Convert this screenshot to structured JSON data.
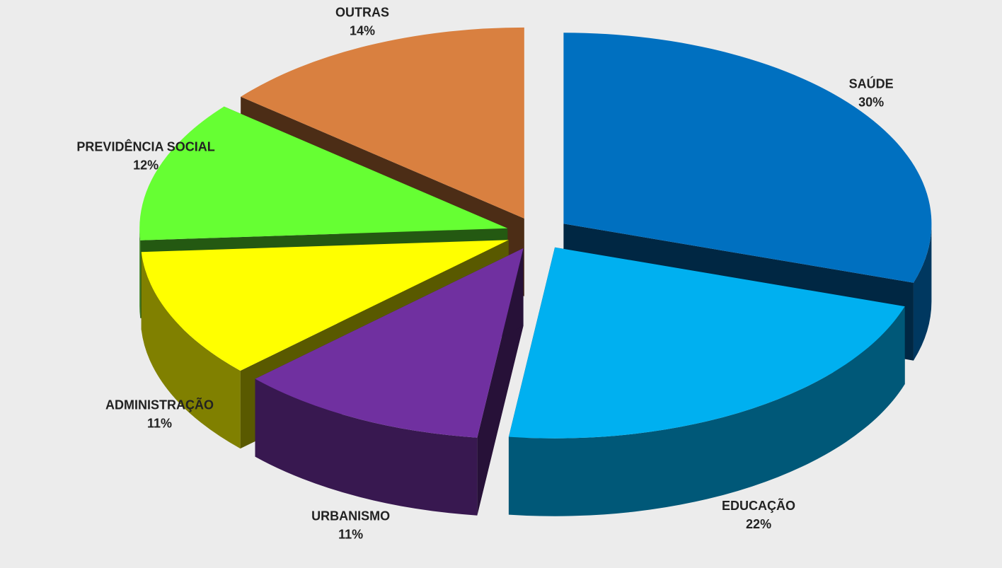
{
  "chart_data": {
    "type": "pie3d",
    "categories": [
      "SAÚDE",
      "EDUCAÇÃO",
      "URBANISMO",
      "ADMINISTRAÇÃO",
      "PREVIDÊNCIA SOCIAL",
      "OUTRAS"
    ],
    "values": [
      30,
      22,
      11,
      11,
      12,
      14
    ],
    "value_labels": [
      "30%",
      "22%",
      "11%",
      "11%",
      "12%",
      "14%"
    ],
    "colors": [
      "#0070c0",
      "#00b0f0",
      "#7030a0",
      "#ffff00",
      "#66ff33",
      "#d98040"
    ]
  }
}
